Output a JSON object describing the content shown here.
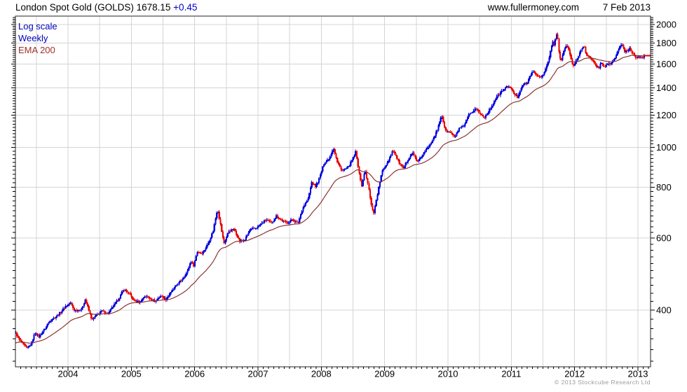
{
  "header": {
    "title": "London Spot Gold (GOLDS) 1678.15",
    "change": "+0.45",
    "website": "www.fullermoney.com",
    "date": "7 Feb 2013"
  },
  "legend": {
    "items": [
      {
        "label": "Log scale",
        "color": "#0000bb"
      },
      {
        "label": "Weekly",
        "color": "#0000bb"
      },
      {
        "label": "EMA 200",
        "color": "#a03028"
      }
    ]
  },
  "footer": {
    "copyright": "© 2013 Stockcube Research Ltd"
  },
  "chart_data": {
    "type": "candlestick",
    "instrument": "London Spot Gold (GOLDS)",
    "last_price": 1678.15,
    "change": 0.45,
    "date": "7 Feb 2013",
    "scale": "log",
    "interval": "weekly",
    "overlay": "EMA 200",
    "grid": true,
    "x_tick_labels": [
      "2004",
      "2005",
      "2006",
      "2007",
      "2008",
      "2009",
      "2010",
      "2011",
      "2012",
      "2013"
    ],
    "x_range": [
      2003.17,
      2013.2
    ],
    "y_tick_values": [
      400,
      600,
      800,
      1000,
      1200,
      1400,
      1600,
      1800,
      2000
    ],
    "y_range": [
      291,
      2097
    ],
    "y_minor_step": 20,
    "grid_x_step_years": 0.5,
    "colors": {
      "up": "#0000e0",
      "down": "#e80000",
      "ema": "#8b3434",
      "grid": "#d4d4d4",
      "axis": "#222222",
      "tick": "#000000",
      "label": "#000000",
      "change_text": "#0000cc",
      "copyright_text": "#9a9a9a"
    },
    "monthly_closes": [
      [
        2003.17,
        352
      ],
      [
        2003.23,
        338
      ],
      [
        2003.29,
        330
      ],
      [
        2003.35,
        322
      ],
      [
        2003.42,
        331
      ],
      [
        2003.48,
        353
      ],
      [
        2003.54,
        344
      ],
      [
        2003.63,
        359
      ],
      [
        2003.71,
        377
      ],
      [
        2003.79,
        384
      ],
      [
        2003.88,
        394
      ],
      [
        2003.96,
        409
      ],
      [
        2004.04,
        416
      ],
      [
        2004.1,
        399
      ],
      [
        2004.21,
        401
      ],
      [
        2004.27,
        425
      ],
      [
        2004.38,
        378
      ],
      [
        2004.46,
        390
      ],
      [
        2004.54,
        398
      ],
      [
        2004.63,
        391
      ],
      [
        2004.71,
        408
      ],
      [
        2004.79,
        424
      ],
      [
        2004.88,
        450
      ],
      [
        2004.96,
        440
      ],
      [
        2005.04,
        422
      ],
      [
        2005.13,
        418
      ],
      [
        2005.21,
        433
      ],
      [
        2005.29,
        428
      ],
      [
        2005.38,
        420
      ],
      [
        2005.46,
        434
      ],
      [
        2005.54,
        425
      ],
      [
        2005.63,
        443
      ],
      [
        2005.71,
        460
      ],
      [
        2005.79,
        473
      ],
      [
        2005.88,
        495
      ],
      [
        2005.94,
        528
      ],
      [
        2005.98,
        513
      ],
      [
        2006.04,
        556
      ],
      [
        2006.13,
        552
      ],
      [
        2006.21,
        582
      ],
      [
        2006.29,
        625
      ],
      [
        2006.36,
        710
      ],
      [
        2006.4,
        655
      ],
      [
        2006.46,
        582
      ],
      [
        2006.54,
        625
      ],
      [
        2006.63,
        630
      ],
      [
        2006.71,
        588
      ],
      [
        2006.79,
        595
      ],
      [
        2006.88,
        630
      ],
      [
        2006.96,
        634
      ],
      [
        2007.04,
        648
      ],
      [
        2007.13,
        667
      ],
      [
        2007.21,
        652
      ],
      [
        2007.29,
        680
      ],
      [
        2007.38,
        662
      ],
      [
        2007.46,
        653
      ],
      [
        2007.54,
        667
      ],
      [
        2007.63,
        652
      ],
      [
        2007.71,
        714
      ],
      [
        2007.79,
        747
      ],
      [
        2007.85,
        825
      ],
      [
        2007.9,
        800
      ],
      [
        2007.96,
        834
      ],
      [
        2008.04,
        912
      ],
      [
        2008.13,
        945
      ],
      [
        2008.19,
        1000
      ],
      [
        2008.25,
        920
      ],
      [
        2008.33,
        878
      ],
      [
        2008.42,
        892
      ],
      [
        2008.5,
        940
      ],
      [
        2008.54,
        975
      ],
      [
        2008.6,
        865
      ],
      [
        2008.63,
        800
      ],
      [
        2008.69,
        880
      ],
      [
        2008.75,
        790
      ],
      [
        2008.79,
        722
      ],
      [
        2008.83,
        692
      ],
      [
        2008.88,
        762
      ],
      [
        2008.92,
        818
      ],
      [
        2008.96,
        875
      ],
      [
        2009.04,
        918
      ],
      [
        2009.13,
        988
      ],
      [
        2009.21,
        928
      ],
      [
        2009.29,
        886
      ],
      [
        2009.38,
        944
      ],
      [
        2009.44,
        972
      ],
      [
        2009.52,
        922
      ],
      [
        2009.58,
        950
      ],
      [
        2009.67,
        993
      ],
      [
        2009.75,
        1042
      ],
      [
        2009.83,
        1102
      ],
      [
        2009.9,
        1205
      ],
      [
        2009.96,
        1098
      ],
      [
        2010.04,
        1088
      ],
      [
        2010.1,
        1058
      ],
      [
        2010.17,
        1108
      ],
      [
        2010.25,
        1128
      ],
      [
        2010.33,
        1198
      ],
      [
        2010.44,
        1248
      ],
      [
        2010.52,
        1202
      ],
      [
        2010.58,
        1188
      ],
      [
        2010.67,
        1246
      ],
      [
        2010.75,
        1316
      ],
      [
        2010.83,
        1362
      ],
      [
        2010.9,
        1398
      ],
      [
        2010.96,
        1416
      ],
      [
        2011.04,
        1356
      ],
      [
        2011.1,
        1328
      ],
      [
        2011.17,
        1422
      ],
      [
        2011.25,
        1438
      ],
      [
        2011.33,
        1540
      ],
      [
        2011.38,
        1508
      ],
      [
        2011.44,
        1492
      ],
      [
        2011.5,
        1498
      ],
      [
        2011.54,
        1556
      ],
      [
        2011.58,
        1618
      ],
      [
        2011.63,
        1748
      ],
      [
        2011.65,
        1828
      ],
      [
        2011.67,
        1762
      ],
      [
        2011.71,
        1898
      ],
      [
        2011.73,
        1868
      ],
      [
        2011.76,
        1652
      ],
      [
        2011.79,
        1642
      ],
      [
        2011.83,
        1722
      ],
      [
        2011.86,
        1792
      ],
      [
        2011.9,
        1748
      ],
      [
        2011.94,
        1648
      ],
      [
        2011.97,
        1578
      ],
      [
        2012.04,
        1648
      ],
      [
        2012.1,
        1732
      ],
      [
        2012.15,
        1782
      ],
      [
        2012.18,
        1698
      ],
      [
        2012.21,
        1672
      ],
      [
        2012.25,
        1650
      ],
      [
        2012.33,
        1592
      ],
      [
        2012.38,
        1562
      ],
      [
        2012.42,
        1618
      ],
      [
        2012.46,
        1577
      ],
      [
        2012.52,
        1592
      ],
      [
        2012.58,
        1612
      ],
      [
        2012.63,
        1648
      ],
      [
        2012.67,
        1702
      ],
      [
        2012.71,
        1772
      ],
      [
        2012.75,
        1778
      ],
      [
        2012.79,
        1716
      ],
      [
        2012.83,
        1726
      ],
      [
        2012.87,
        1752
      ],
      [
        2012.9,
        1714
      ],
      [
        2012.94,
        1692
      ],
      [
        2012.97,
        1662
      ],
      [
        2013.02,
        1666
      ],
      [
        2013.06,
        1652
      ],
      [
        2013.1,
        1678
      ]
    ]
  }
}
